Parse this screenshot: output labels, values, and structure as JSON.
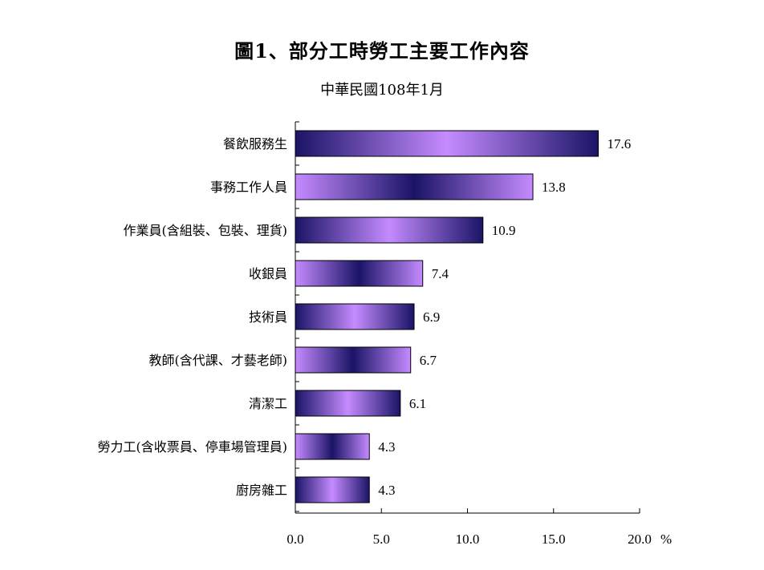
{
  "chart_data": {
    "type": "bar",
    "orientation": "horizontal",
    "title": "圖1、部分工時勞工主要工作內容",
    "subtitle": "中華民國108年1月",
    "categories": [
      "餐飲服務生",
      "事務工作人員",
      "作業員(含組裝、包裝、理貨)",
      "收銀員",
      "技術員",
      "教師(含代課、才藝老師)",
      "清潔工",
      "勞力工(含收票員、停車場管理員)",
      "廚房雜工"
    ],
    "values": [
      17.6,
      13.8,
      10.9,
      7.4,
      6.9,
      6.7,
      6.1,
      4.3,
      4.3
    ],
    "value_labels": [
      "17.6",
      "13.8",
      "10.9",
      "7.4",
      "6.9",
      "6.7",
      "6.1",
      "4.3",
      "4.3"
    ],
    "xlim": [
      0,
      20
    ],
    "x_ticks": [
      "0.0",
      "5.0",
      "10.0",
      "15.0",
      "20.0"
    ],
    "x_unit": "%",
    "grid": false,
    "bar_colors": {
      "dark": "#1a1466",
      "light": "#c58bff"
    }
  }
}
